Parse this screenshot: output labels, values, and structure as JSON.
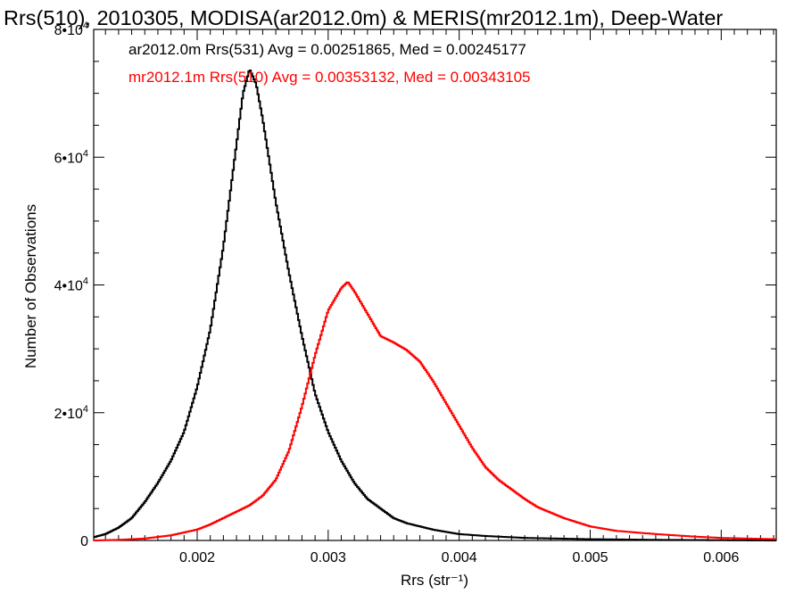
{
  "chart_data": {
    "type": "line",
    "title": "Rrs(510), 2010305, MODISA(ar2012.0m) & MERIS(mr2012.1m), Deep-Water",
    "xlabel": "Rrs (str⁻¹)",
    "ylabel": "Number of Observations",
    "xlim": [
      0.00121,
      0.00642
    ],
    "ylim": [
      0,
      80000
    ],
    "x_ticks": [
      0.002,
      0.003,
      0.004,
      0.005,
      0.006
    ],
    "x_tick_labels": [
      "0.002",
      "0.003",
      "0.004",
      "0.005",
      "0.006"
    ],
    "y_ticks": [
      0,
      20000,
      40000,
      60000,
      80000
    ],
    "y_tick_labels": [
      {
        "mantissa": "0",
        "exp": ""
      },
      {
        "mantissa": "2•10",
        "exp": "4"
      },
      {
        "mantissa": "4•10",
        "exp": "4"
      },
      {
        "mantissa": "6•10",
        "exp": "4"
      },
      {
        "mantissa": "8•10",
        "exp": "4"
      }
    ],
    "grid": false,
    "series": [
      {
        "name": "ar2012.0m Rrs(531)",
        "label": "ar2012.0m Rrs(531) Avg = 0.00251865, Med = 0.00245177",
        "color": "#000000",
        "x": [
          0.00121,
          0.0013,
          0.0014,
          0.0015,
          0.0016,
          0.0017,
          0.0018,
          0.0019,
          0.002,
          0.0021,
          0.0022,
          0.0023,
          0.00235,
          0.0024,
          0.00245,
          0.0025,
          0.0026,
          0.0027,
          0.0028,
          0.0029,
          0.003,
          0.0031,
          0.0032,
          0.0033,
          0.0034,
          0.0035,
          0.0036,
          0.0038,
          0.004,
          0.0042,
          0.0045,
          0.005,
          0.0055,
          0.006,
          0.00642
        ],
        "y": [
          500,
          1000,
          2000,
          3500,
          6000,
          9000,
          12500,
          17000,
          24000,
          33000,
          46000,
          62000,
          70000,
          73800,
          71500,
          66000,
          53000,
          42000,
          32000,
          23000,
          17000,
          12500,
          9000,
          6500,
          5000,
          3500,
          2700,
          1700,
          1000,
          700,
          400,
          200,
          100,
          50,
          0
        ]
      },
      {
        "name": "mr2012.1m Rrs(510)",
        "label": "mr2012.1m Rrs(510) Avg = 0.00353132, Med = 0.00343105",
        "color": "#ff0000",
        "x": [
          0.00121,
          0.0014,
          0.0016,
          0.0018,
          0.002,
          0.0021,
          0.0022,
          0.0023,
          0.0024,
          0.0025,
          0.0026,
          0.0027,
          0.0028,
          0.0029,
          0.003,
          0.0031,
          0.00315,
          0.0032,
          0.0033,
          0.0034,
          0.0035,
          0.0036,
          0.0037,
          0.0038,
          0.0039,
          0.004,
          0.0041,
          0.0042,
          0.0043,
          0.0044,
          0.0045,
          0.0046,
          0.0048,
          0.005,
          0.0052,
          0.0055,
          0.0058,
          0.006,
          0.00642
        ],
        "y": [
          0,
          100,
          300,
          800,
          1700,
          2500,
          3500,
          4500,
          5500,
          7000,
          9500,
          14000,
          21000,
          29000,
          36000,
          39500,
          40500,
          39000,
          35500,
          32000,
          31000,
          29800,
          28000,
          25000,
          21500,
          18000,
          14500,
          11500,
          9500,
          8000,
          6500,
          5200,
          3500,
          2200,
          1500,
          1000,
          600,
          400,
          200
        ]
      }
    ]
  }
}
